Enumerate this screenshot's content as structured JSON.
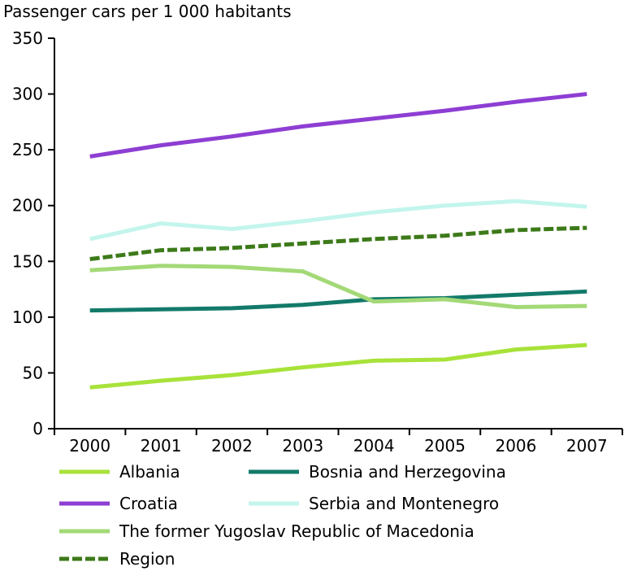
{
  "chart_data": {
    "type": "line",
    "title": "",
    "xlabel": "",
    "ylabel": "Passenger cars per 1 000 habitants",
    "categories": [
      "2000",
      "2001",
      "2002",
      "2003",
      "2004",
      "2005",
      "2006",
      "2007"
    ],
    "ylim": [
      0,
      350
    ],
    "yticks": [
      "0",
      "50",
      "100",
      "150",
      "200",
      "250",
      "300",
      "350"
    ],
    "grid": false,
    "legend_position": "bottom",
    "series": [
      {
        "name": "Albania",
        "color": "#a8e23a",
        "dashed": false,
        "values": [
          37,
          43,
          48,
          55,
          61,
          62,
          71,
          75
        ]
      },
      {
        "name": "Bosnia and Herzegovina",
        "color": "#137a6a",
        "dashed": false,
        "values": [
          106,
          107,
          108,
          111,
          116,
          117,
          120,
          123
        ]
      },
      {
        "name": "Croatia",
        "color": "#8e3ed3",
        "dashed": false,
        "values": [
          244,
          254,
          262,
          271,
          278,
          285,
          293,
          300
        ]
      },
      {
        "name": "Serbia and Montenegro",
        "color": "#c3f5ec",
        "dashed": false,
        "values": [
          170,
          184,
          179,
          186,
          194,
          200,
          204,
          199
        ]
      },
      {
        "name": "The former Yugoslav Republic of Macedonia",
        "color": "#a3d977",
        "dashed": false,
        "values": [
          142,
          146,
          145,
          141,
          114,
          116,
          109,
          110
        ]
      },
      {
        "name": "Region",
        "color": "#3d7a1a",
        "dashed": true,
        "values": [
          152,
          160,
          162,
          166,
          170,
          173,
          178,
          180
        ]
      }
    ]
  }
}
